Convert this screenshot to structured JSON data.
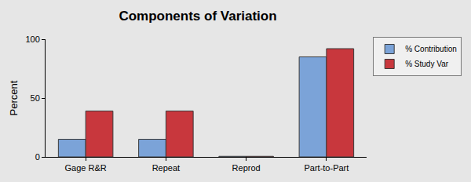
{
  "chart_data": {
    "type": "bar",
    "title": "Components of Variation",
    "y_label": "Percent",
    "categories": [
      "Gage R&R",
      "Repeat",
      "Reprod",
      "Part-to-Part"
    ],
    "series": [
      {
        "name": "% Contribution",
        "color": "#7ba3d8",
        "values": [
          15,
          15,
          0.5,
          85
        ]
      },
      {
        "name": "% Study Var",
        "color": "#c8373d",
        "values": [
          39,
          39,
          0.5,
          92
        ]
      }
    ],
    "ylim": [
      0,
      100
    ],
    "yticks": [
      0,
      50,
      100
    ],
    "grid": false,
    "legend": "top right"
  }
}
